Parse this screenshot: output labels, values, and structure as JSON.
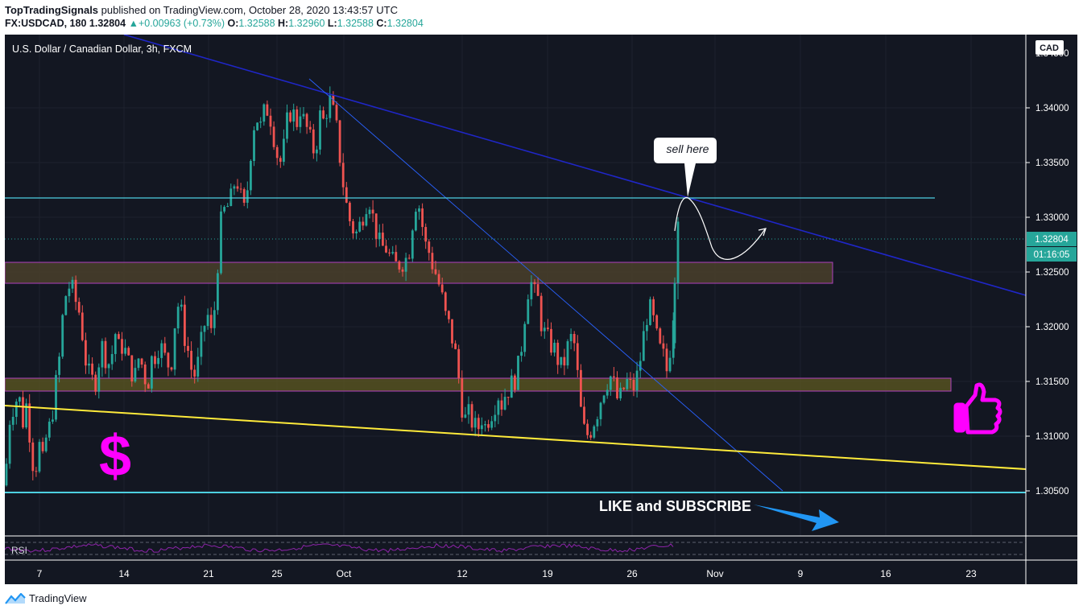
{
  "header": {
    "author": "TopTradingSignals",
    "published_text": "published on TradingView.com, October 28, 2020 13:43:57 UTC",
    "symbol": "FX:USDCAD, 180",
    "last": "1.32804",
    "change_arrow": "▲",
    "change": "+0.00963 (+0.73%)",
    "o_label": "O:",
    "o": "1.32588",
    "h_label": "H:",
    "h": "1.32960",
    "l_label": "L:",
    "l": "1.32588",
    "c_label": "C:",
    "c": "1.32804"
  },
  "chart": {
    "legend": "U.S. Dollar / Canadian Dollar, 3h, FXCM",
    "currency": "CAD",
    "price_tag": "1.32804",
    "countdown": "01:16:05",
    "callout": "sell here",
    "like_text": "LIKE and SUBSCRIBE",
    "dollar": "$",
    "rsi_label": "RSI"
  },
  "footer": {
    "brand": "TradingView"
  },
  "colors": {
    "up": "#26a69a",
    "down": "#ef5350",
    "bg": "#131722",
    "magenta": "#ff00ff",
    "cyan": "#00bcd4",
    "yellow": "#ffeb3b",
    "blue": "#1f26c7",
    "arrow": "#2196f3"
  },
  "chart_data": {
    "type": "candlestick",
    "ylim": [
      1.301,
      1.3445
    ],
    "y_ticks": [
      "1.34000",
      "1.33500",
      "1.33000",
      "1.32500",
      "1.32000",
      "1.31500",
      "1.31000",
      "1.30500"
    ],
    "x_ticks": [
      "7",
      "14",
      "21",
      "25",
      "Oct",
      "12",
      "19",
      "26",
      "Nov",
      "9",
      "16",
      "23"
    ],
    "close_path": [
      [
        0,
        1.3055
      ],
      [
        7,
        1.3125
      ],
      [
        12,
        1.3128
      ],
      [
        17,
        1.314
      ],
      [
        22,
        1.3112
      ],
      [
        27,
        1.313
      ],
      [
        32,
        1.3095
      ],
      [
        37,
        1.3062
      ],
      [
        42,
        1.3095
      ],
      [
        47,
        1.3075
      ],
      [
        52,
        1.3102
      ],
      [
        57,
        1.311
      ],
      [
        62,
        1.314
      ],
      [
        67,
        1.3165
      ],
      [
        72,
        1.321
      ],
      [
        77,
        1.3235
      ],
      [
        82,
        1.3238
      ],
      [
        87,
        1.3225
      ],
      [
        92,
        1.3215
      ],
      [
        97,
        1.319
      ],
      [
        102,
        1.316
      ],
      [
        107,
        1.3152
      ],
      [
        112,
        1.3148
      ],
      [
        117,
        1.317
      ],
      [
        122,
        1.3185
      ],
      [
        127,
        1.3165
      ],
      [
        132,
        1.317
      ],
      [
        137,
        1.3195
      ],
      [
        142,
        1.3178
      ],
      [
        147,
        1.3185
      ],
      [
        152,
        1.317
      ],
      [
        157,
        1.316
      ],
      [
        162,
        1.3155
      ],
      [
        167,
        1.3175
      ],
      [
        172,
        1.316
      ],
      [
        177,
        1.3145
      ],
      [
        182,
        1.317
      ],
      [
        187,
        1.3175
      ],
      [
        192,
        1.3185
      ],
      [
        197,
        1.3175
      ],
      [
        202,
        1.3165
      ],
      [
        207,
        1.317
      ],
      [
        212,
        1.321
      ],
      [
        217,
        1.3225
      ],
      [
        222,
        1.3195
      ],
      [
        227,
        1.318
      ],
      [
        232,
        1.316
      ],
      [
        237,
        1.3155
      ],
      [
        242,
        1.3175
      ],
      [
        247,
        1.32
      ],
      [
        252,
        1.321
      ],
      [
        257,
        1.319
      ],
      [
        262,
        1.323
      ],
      [
        267,
        1.329
      ],
      [
        272,
        1.3305
      ],
      [
        277,
        1.331
      ],
      [
        282,
        1.3318
      ],
      [
        287,
        1.334
      ],
      [
        292,
        1.332
      ],
      [
        297,
        1.3305
      ],
      [
        302,
        1.333
      ],
      [
        307,
        1.3375
      ],
      [
        312,
        1.3395
      ],
      [
        317,
        1.338
      ],
      [
        322,
        1.3395
      ],
      [
        327,
        1.34
      ],
      [
        332,
        1.3385
      ],
      [
        337,
        1.336
      ],
      [
        342,
        1.335
      ],
      [
        347,
        1.3365
      ],
      [
        352,
        1.3395
      ],
      [
        357,
        1.3398
      ],
      [
        362,
        1.3385
      ],
      [
        367,
        1.34
      ],
      [
        372,
        1.3385
      ],
      [
        377,
        1.3378
      ],
      [
        382,
        1.336
      ],
      [
        387,
        1.3368
      ],
      [
        392,
        1.3395
      ],
      [
        397,
        1.3385
      ],
      [
        402,
        1.341
      ],
      [
        407,
        1.3398
      ],
      [
        412,
        1.338
      ],
      [
        417,
        1.335
      ],
      [
        422,
        1.332
      ],
      [
        427,
        1.33
      ],
      [
        432,
        1.329
      ],
      [
        437,
        1.3285
      ],
      [
        442,
        1.3295
      ],
      [
        447,
        1.331
      ],
      [
        452,
        1.332
      ],
      [
        457,
        1.33
      ],
      [
        462,
        1.3285
      ],
      [
        467,
        1.327
      ],
      [
        472,
        1.3275
      ],
      [
        477,
        1.3265
      ],
      [
        482,
        1.3258
      ],
      [
        487,
        1.3255
      ],
      [
        492,
        1.326
      ],
      [
        497,
        1.326
      ],
      [
        502,
        1.327
      ],
      [
        507,
        1.33
      ],
      [
        512,
        1.332
      ],
      [
        517,
        1.33
      ],
      [
        522,
        1.3275
      ],
      [
        527,
        1.3268
      ],
      [
        532,
        1.3255
      ],
      [
        537,
        1.3245
      ],
      [
        542,
        1.323
      ],
      [
        547,
        1.321
      ],
      [
        552,
        1.32
      ],
      [
        557,
        1.3185
      ],
      [
        562,
        1.3165
      ],
      [
        567,
        1.313
      ],
      [
        572,
        1.3115
      ],
      [
        577,
        1.312
      ],
      [
        582,
        1.311
      ],
      [
        587,
        1.3105
      ],
      [
        592,
        1.3118
      ],
      [
        597,
        1.3108
      ],
      [
        602,
        1.312
      ],
      [
        607,
        1.3125
      ],
      [
        612,
        1.314
      ],
      [
        617,
        1.313
      ],
      [
        622,
        1.314
      ],
      [
        627,
        1.3145
      ],
      [
        632,
        1.315
      ],
      [
        637,
        1.316
      ],
      [
        642,
        1.3185
      ],
      [
        647,
        1.322
      ],
      [
        652,
        1.3245
      ],
      [
        657,
        1.323
      ],
      [
        662,
        1.3225
      ],
      [
        667,
        1.32
      ],
      [
        672,
        1.319
      ],
      [
        677,
        1.3185
      ],
      [
        682,
        1.318
      ],
      [
        687,
        1.317
      ],
      [
        692,
        1.316
      ],
      [
        697,
        1.3175
      ],
      [
        702,
        1.319
      ],
      [
        707,
        1.3185
      ],
      [
        712,
        1.315
      ],
      [
        717,
        1.311
      ],
      [
        722,
        1.31
      ],
      [
        727,
        1.3105
      ],
      [
        732,
        1.3115
      ],
      [
        737,
        1.3125
      ],
      [
        742,
        1.314
      ],
      [
        747,
        1.315
      ],
      [
        752,
        1.3155
      ],
      [
        757,
        1.3145
      ],
      [
        762,
        1.313
      ],
      [
        767,
        1.314
      ],
      [
        772,
        1.315
      ],
      [
        777,
        1.3145
      ],
      [
        782,
        1.3145
      ],
      [
        787,
        1.316
      ],
      [
        792,
        1.3185
      ],
      [
        797,
        1.321
      ],
      [
        802,
        1.3215
      ],
      [
        807,
        1.32
      ],
      [
        812,
        1.318
      ],
      [
        817,
        1.3175
      ],
      [
        822,
        1.316
      ],
      [
        827,
        1.3185
      ],
      [
        832,
        1.323
      ],
      [
        837,
        1.328
      ]
    ]
  }
}
